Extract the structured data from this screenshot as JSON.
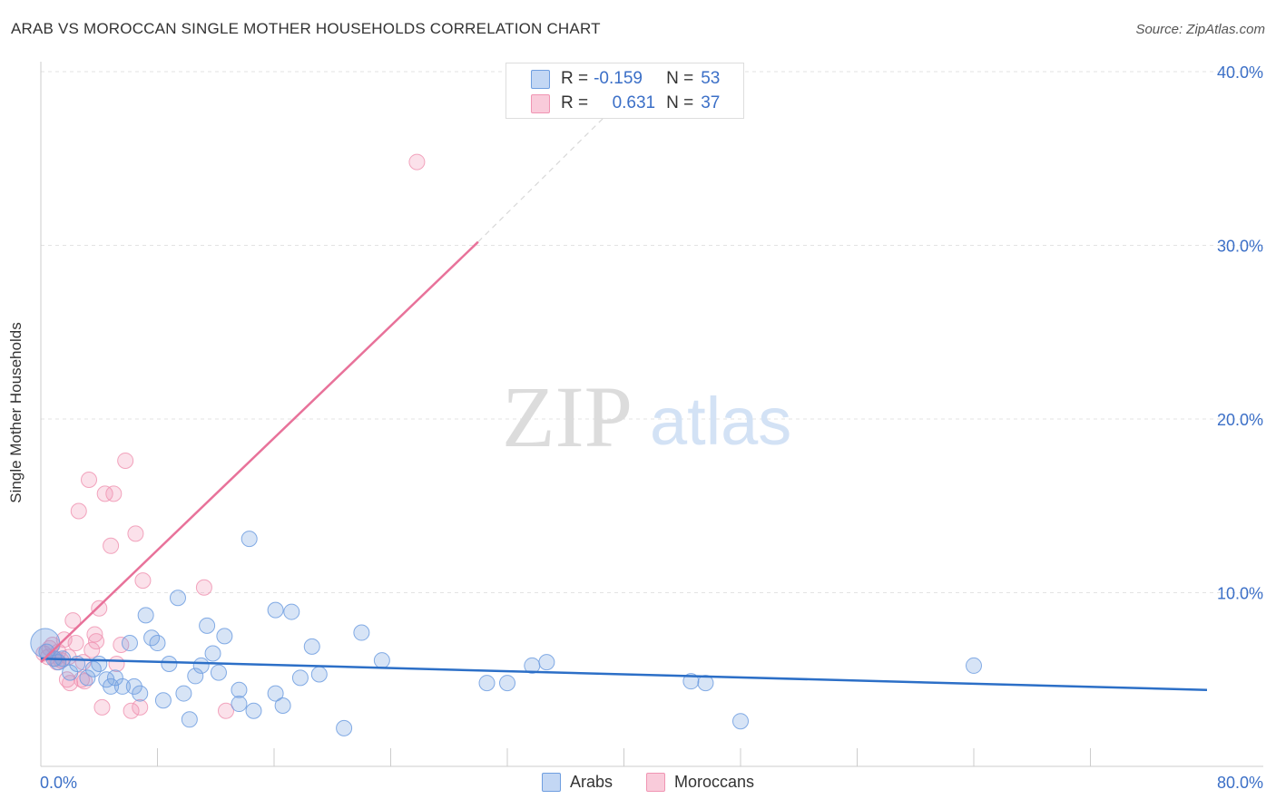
{
  "title": "ARAB VS MOROCCAN SINGLE MOTHER HOUSEHOLDS CORRELATION CHART",
  "source": "Source: ZipAtlas.com",
  "watermark": {
    "zip": "ZIP",
    "atlas": "atlas"
  },
  "legend": {
    "arabs": {
      "r_label": "R =",
      "r_value": "-0.159",
      "n_label": "N =",
      "n_value": "53"
    },
    "moroccans": {
      "r_label": "R =",
      "r_value": "0.631",
      "n_label": "N =",
      "n_value": "37"
    }
  },
  "chart_data": {
    "type": "scatter",
    "title": "ARAB VS MOROCCAN SINGLE MOTHER HOUSEHOLDS CORRELATION CHART",
    "xlabel": "",
    "ylabel": "Single Mother Households",
    "xlim": [
      0,
      80
    ],
    "ylim": [
      0,
      40
    ],
    "x_tick_labels": [
      "0.0%",
      "80.0%"
    ],
    "y_ticks": [
      10,
      20,
      30,
      40
    ],
    "y_tick_labels": [
      "10.0%",
      "20.0%",
      "30.0%",
      "40.0%"
    ],
    "grid": true,
    "legend_position": "top-center",
    "colors": {
      "arabs": "#6f9ee0",
      "moroccans": "#f095b3",
      "arabs_line": "#2c6fc7",
      "moroccans_line": "#e8729a"
    },
    "series": [
      {
        "name": "Arabs",
        "r": -0.159,
        "n": 53,
        "trend": {
          "x0": 0,
          "y0": 6.2,
          "x1": 80,
          "y1": 4.4
        },
        "points": [
          [
            0.3,
            7.1
          ],
          [
            0.4,
            6.6
          ],
          [
            0.9,
            6.2
          ],
          [
            1.2,
            6.0
          ],
          [
            1.5,
            6.2
          ],
          [
            2.0,
            5.4
          ],
          [
            2.5,
            5.9
          ],
          [
            3.2,
            5.1
          ],
          [
            3.6,
            5.6
          ],
          [
            4.0,
            5.9
          ],
          [
            4.5,
            5.0
          ],
          [
            4.8,
            4.6
          ],
          [
            5.1,
            5.1
          ],
          [
            5.6,
            4.6
          ],
          [
            6.1,
            7.1
          ],
          [
            6.4,
            4.6
          ],
          [
            6.8,
            4.2
          ],
          [
            7.2,
            8.7
          ],
          [
            7.6,
            7.4
          ],
          [
            8.0,
            7.1
          ],
          [
            8.4,
            3.8
          ],
          [
            8.8,
            5.9
          ],
          [
            9.4,
            9.7
          ],
          [
            9.8,
            4.2
          ],
          [
            10.2,
            2.7
          ],
          [
            10.6,
            5.2
          ],
          [
            11.0,
            5.8
          ],
          [
            11.4,
            8.1
          ],
          [
            11.8,
            6.5
          ],
          [
            12.2,
            5.4
          ],
          [
            12.6,
            7.5
          ],
          [
            13.6,
            4.4
          ],
          [
            13.6,
            3.6
          ],
          [
            14.3,
            13.1
          ],
          [
            14.6,
            3.2
          ],
          [
            16.1,
            4.2
          ],
          [
            16.1,
            9.0
          ],
          [
            16.6,
            3.5
          ],
          [
            17.2,
            8.9
          ],
          [
            17.8,
            5.1
          ],
          [
            18.6,
            6.9
          ],
          [
            19.1,
            5.3
          ],
          [
            20.8,
            2.2
          ],
          [
            22.0,
            7.7
          ],
          [
            23.4,
            6.1
          ],
          [
            30.6,
            4.8
          ],
          [
            32.0,
            4.8
          ],
          [
            33.7,
            5.8
          ],
          [
            34.7,
            6.0
          ],
          [
            44.6,
            4.9
          ],
          [
            45.6,
            4.8
          ],
          [
            48.0,
            2.6
          ],
          [
            64.0,
            5.8
          ]
        ]
      },
      {
        "name": "Moroccans",
        "r": 0.631,
        "n": 37,
        "trend": {
          "x0": 0,
          "y0": 6.0,
          "x1": 30,
          "y1": 30.2
        },
        "trend_dashed": {
          "x0": 30,
          "y0": 30.2,
          "x1": 40,
          "y1": 38.5
        },
        "points": [
          [
            0.2,
            6.5
          ],
          [
            0.5,
            6.3
          ],
          [
            0.8,
            7.0
          ],
          [
            1.0,
            6.2
          ],
          [
            1.2,
            6.6
          ],
          [
            1.4,
            6.1
          ],
          [
            1.6,
            7.3
          ],
          [
            1.8,
            5.0
          ],
          [
            2.0,
            4.8
          ],
          [
            2.2,
            8.4
          ],
          [
            2.4,
            7.1
          ],
          [
            2.6,
            14.7
          ],
          [
            2.8,
            5.0
          ],
          [
            3.0,
            4.9
          ],
          [
            3.3,
            16.5
          ],
          [
            3.5,
            6.7
          ],
          [
            3.7,
            7.6
          ],
          [
            3.8,
            7.2
          ],
          [
            4.0,
            9.1
          ],
          [
            4.2,
            3.4
          ],
          [
            4.4,
            15.7
          ],
          [
            4.8,
            12.7
          ],
          [
            5.0,
            15.7
          ],
          [
            5.2,
            5.9
          ],
          [
            5.5,
            7.0
          ],
          [
            5.8,
            17.6
          ],
          [
            6.2,
            3.2
          ],
          [
            6.5,
            13.4
          ],
          [
            6.8,
            3.4
          ],
          [
            7.0,
            10.7
          ],
          [
            11.2,
            10.3
          ],
          [
            12.7,
            3.2
          ],
          [
            25.8,
            34.8
          ],
          [
            1.1,
            6.0
          ],
          [
            0.6,
            6.8
          ],
          [
            2.9,
            6.0
          ],
          [
            1.9,
            6.3
          ]
        ]
      }
    ]
  },
  "bottom_legend": {
    "arabs": "Arabs",
    "moroccans": "Moroccans"
  }
}
